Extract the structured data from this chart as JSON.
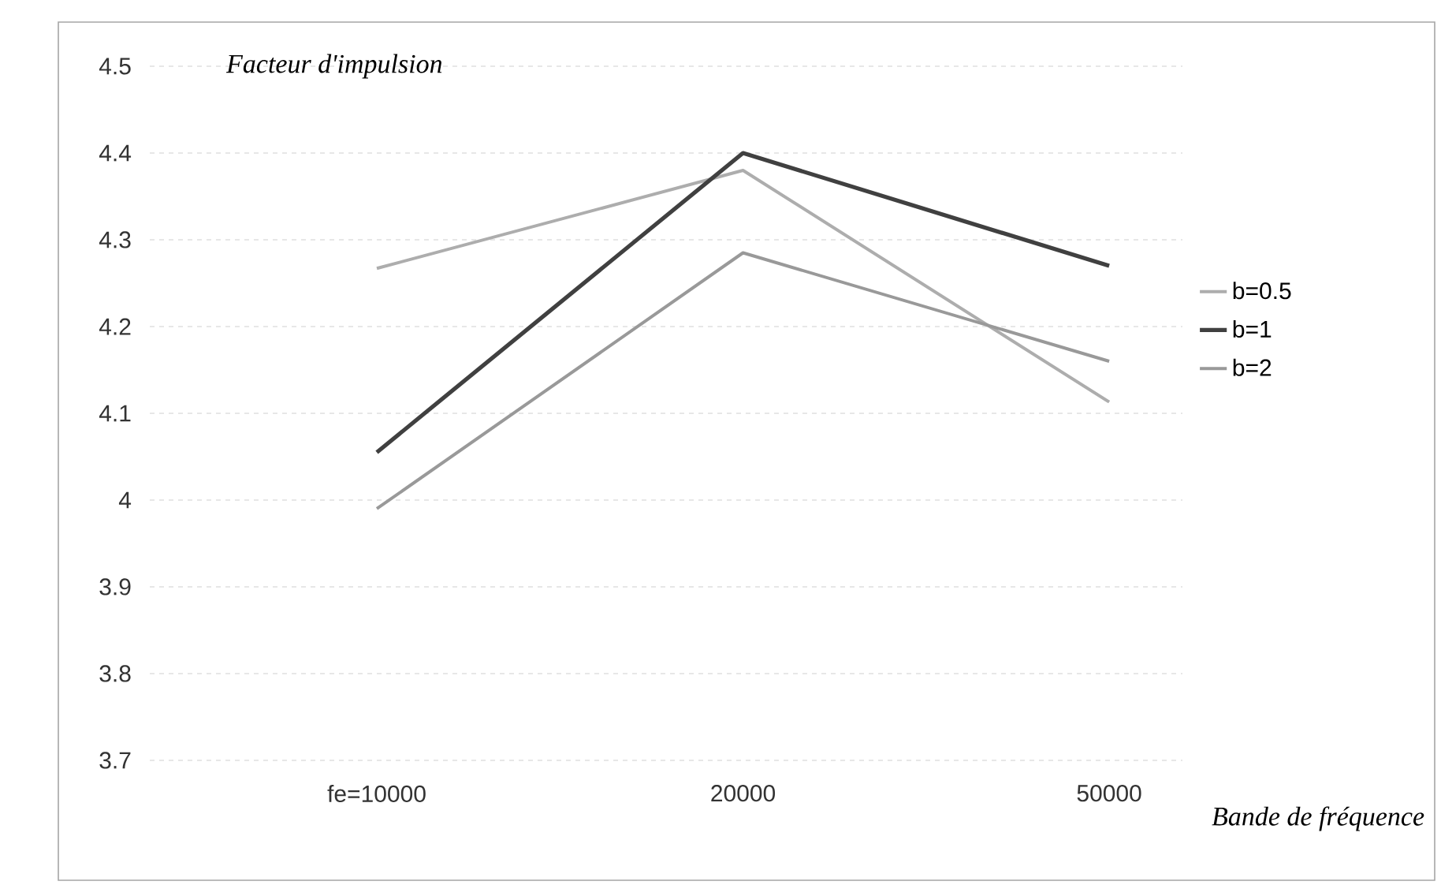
{
  "chart_data": {
    "type": "line",
    "xlabel": "Bande de fréquence",
    "ylabel": "Facteur d'impulsion",
    "categories": [
      "fe=10000",
      "20000",
      "50000"
    ],
    "series": [
      {
        "name": "b=0.5",
        "color": "#adadad",
        "values": [
          4.267,
          4.38,
          4.113
        ]
      },
      {
        "name": "b=1",
        "color": "#404040",
        "values": [
          4.055,
          4.4,
          4.27
        ]
      },
      {
        "name": "b=2",
        "color": "#999999",
        "values": [
          3.99,
          4.285,
          4.16
        ]
      }
    ],
    "ylim": [
      3.7,
      4.5
    ],
    "yticks": [
      3.7,
      3.8,
      3.9,
      4,
      4.1,
      4.2,
      4.3,
      4.4,
      4.5
    ],
    "grid": "y",
    "legend": "right",
    "marker": "none",
    "line_style": "solid"
  }
}
